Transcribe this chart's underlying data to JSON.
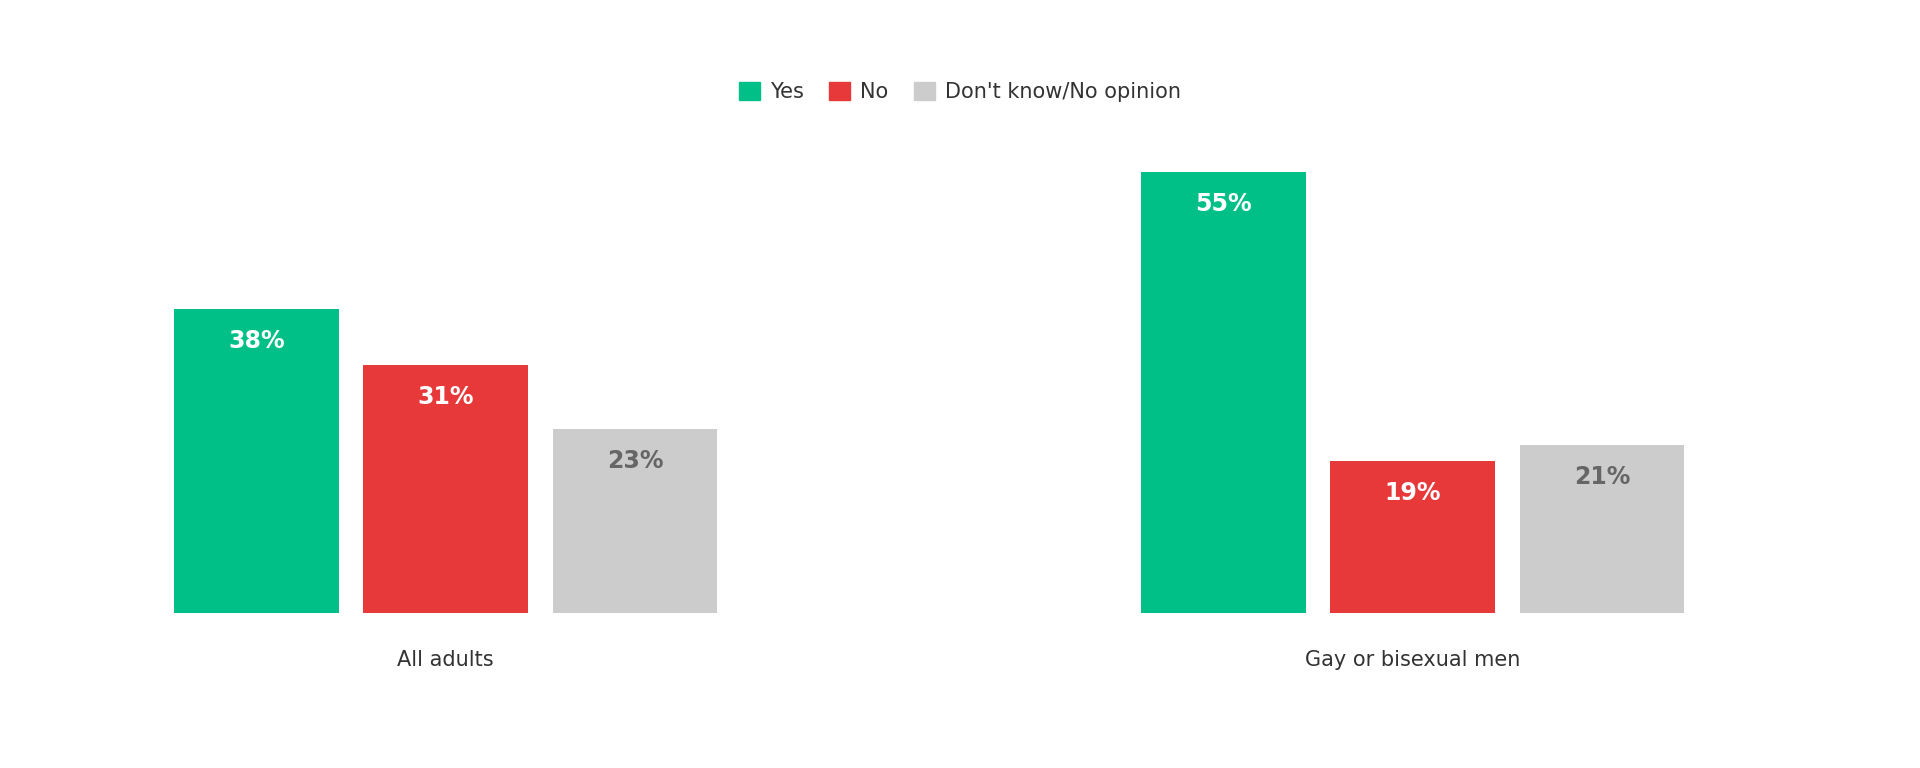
{
  "groups": [
    "All adults",
    "Gay or bisexual men"
  ],
  "categories": [
    "Yes",
    "No",
    "Don't know/No opinion"
  ],
  "values": {
    "All adults": [
      38,
      31,
      23
    ],
    "Gay or bisexual men": [
      55,
      19,
      21
    ]
  },
  "colors": [
    "#00BF87",
    "#E8393A",
    "#CCCCCC"
  ],
  "bar_width": 0.08,
  "background_color": "#ffffff",
  "legend_fontsize": 15,
  "label_fontsize": 17,
  "group_label_fontsize": 15,
  "ylim": [
    0,
    65
  ],
  "figsize": [
    19.2,
    7.68
  ],
  "group_centers": [
    0.25,
    0.72
  ],
  "label_text_colors": [
    "#ffffff",
    "#ffffff",
    "#666666"
  ]
}
